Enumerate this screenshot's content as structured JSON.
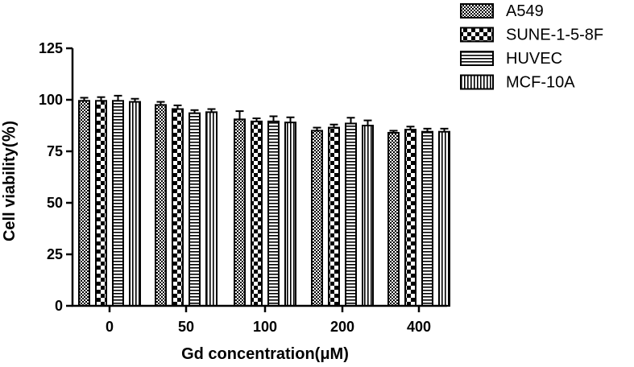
{
  "chart_data": {
    "type": "bar",
    "categories": [
      "0",
      "50",
      "100",
      "200",
      "400"
    ],
    "series": [
      {
        "name": "A549",
        "pattern": "checker-fine",
        "values": [
          99.5,
          97.5,
          90.5,
          85.0,
          84.0
        ],
        "errors": [
          1.5,
          1.5,
          4.0,
          1.5,
          1.0
        ]
      },
      {
        "name": "SUNE-1-5-8F",
        "pattern": "checker-coarse",
        "values": [
          99.5,
          95.5,
          89.5,
          86.5,
          85.5
        ],
        "errors": [
          1.8,
          1.8,
          1.5,
          1.5,
          1.5
        ]
      },
      {
        "name": "HUVEC",
        "pattern": "horizontal-lines",
        "values": [
          99.5,
          93.5,
          89.5,
          88.5,
          84.5
        ],
        "errors": [
          2.5,
          1.5,
          2.5,
          2.8,
          1.5
        ]
      },
      {
        "name": "MCF-10A",
        "pattern": "vertical-lines",
        "values": [
          99.0,
          94.0,
          89.0,
          87.5,
          84.5
        ],
        "errors": [
          1.5,
          1.5,
          2.5,
          2.5,
          1.5
        ]
      }
    ],
    "xlabel": "Gd concentration(μM)",
    "ylabel": "Cell viability(％)",
    "ylim": [
      0,
      125
    ],
    "yticks": [
      0,
      25,
      50,
      75,
      100,
      125
    ],
    "grid": false,
    "legend_position": "top-right"
  }
}
